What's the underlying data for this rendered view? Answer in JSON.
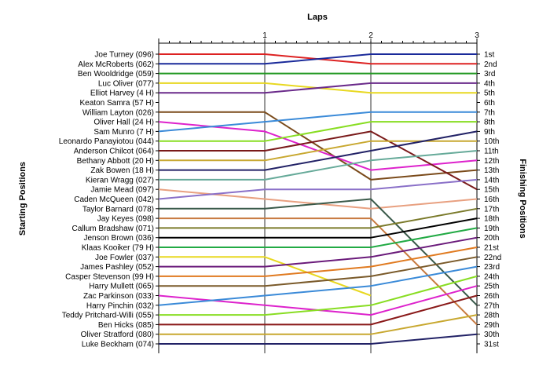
{
  "chart_data": {
    "type": "line",
    "xlabel": "Laps",
    "left_axis_label": "Starting Positions",
    "right_axis_label": "Finishing Positions",
    "x_ticks": [
      "1",
      "2",
      "3"
    ],
    "grid": "vertical",
    "position_labels": [
      "1st",
      "2nd",
      "3rd",
      "4th",
      "5th",
      "6th",
      "7th",
      "8th",
      "9th",
      "10th",
      "11th",
      "12th",
      "13th",
      "14th",
      "15th",
      "16th",
      "17th",
      "18th",
      "19th",
      "20th",
      "21st",
      "22nd",
      "23rd",
      "24th",
      "25th",
      "26th",
      "27th",
      "28th",
      "29th",
      "30th",
      "31st"
    ],
    "series": [
      {
        "name": "Joe Turney (096)",
        "color": "#dd2222",
        "positions": [
          1,
          1,
          2,
          2
        ]
      },
      {
        "name": "Alex McRoberts (062)",
        "color": "#1a2a9a",
        "positions": [
          2,
          2,
          1,
          1
        ]
      },
      {
        "name": "Ben Wooldridge (059)",
        "color": "#229922",
        "positions": [
          3,
          3,
          3,
          3
        ]
      },
      {
        "name": "Luc Oliver (077)",
        "color": "#e8d820",
        "positions": [
          4,
          4,
          5,
          5
        ]
      },
      {
        "name": "Elliot Harvey (4 H)",
        "color": "#6a2a8a",
        "positions": [
          5,
          5,
          4,
          4
        ]
      },
      {
        "name": "Keaton Samra (57 H)",
        "color": "",
        "positions": [
          6
        ]
      },
      {
        "name": "William Layton (026)",
        "color": "#7a4a1a",
        "positions": [
          7,
          7,
          14,
          13
        ]
      },
      {
        "name": "Oliver Hall (24 H)",
        "color": "#dd22cc",
        "positions": [
          8,
          9,
          13,
          12
        ]
      },
      {
        "name": "Sam Munro (7 H)",
        "color": "#3a8ad8",
        "positions": [
          9,
          8,
          7,
          7
        ]
      },
      {
        "name": "Leonardo Panayiotou (044)",
        "color": "#88dd22",
        "positions": [
          10,
          10,
          8,
          8
        ]
      },
      {
        "name": "Anderson Chilcot (064)",
        "color": "#7a1a1a",
        "positions": [
          11,
          11,
          9,
          15
        ]
      },
      {
        "name": "Bethany Abbott (20 H)",
        "color": "#c8a830",
        "positions": [
          12,
          12,
          10,
          10
        ]
      },
      {
        "name": "Zak Bowen (18 H)",
        "color": "#222266",
        "positions": [
          13,
          13,
          11,
          9
        ]
      },
      {
        "name": "Kieran Wragg (027)",
        "color": "#66aa99",
        "positions": [
          14,
          14,
          12,
          11
        ]
      },
      {
        "name": "Jamie Mead (097)",
        "color": "#e8a080",
        "positions": [
          15,
          16,
          17,
          16
        ]
      },
      {
        "name": "Caden McQueen (042)",
        "color": "#8a70c8",
        "positions": [
          16,
          15,
          15,
          14
        ]
      },
      {
        "name": "Taylor Barnard (078)",
        "color": "#3a5a4a",
        "positions": [
          17,
          17,
          16,
          27
        ]
      },
      {
        "name": "Jay Keyes (098)",
        "color": "#c87a40",
        "positions": [
          18,
          18,
          18,
          29
        ]
      },
      {
        "name": "Callum Bradshaw (071)",
        "color": "#7a7a2a",
        "positions": [
          19,
          19,
          19,
          17
        ]
      },
      {
        "name": "Jenson Brown (036)",
        "color": "#000000",
        "positions": [
          20,
          20,
          20,
          18
        ]
      },
      {
        "name": "Klaas Kooiker (79 H)",
        "color": "#22aa44",
        "positions": [
          21,
          21,
          21,
          19
        ]
      },
      {
        "name": "Joe Fowler (037)",
        "color": "#e8d820",
        "positions": [
          22,
          22,
          26
        ]
      },
      {
        "name": "James Pashley (052)",
        "color": "#6a1a7a",
        "positions": [
          23,
          23,
          22,
          20
        ]
      },
      {
        "name": "Casper Stevenson (99 H)",
        "color": "#e07a20",
        "positions": [
          24,
          24,
          23,
          21
        ]
      },
      {
        "name": "Harry Mullett (065)",
        "color": "#7a5a2a",
        "positions": [
          25,
          25,
          24,
          22
        ]
      },
      {
        "name": "Zac Parkinson (033)",
        "color": "#dd22cc",
        "positions": [
          26,
          27,
          28,
          25
        ]
      },
      {
        "name": "Harry Pinchin (032)",
        "color": "#3a8ad8",
        "positions": [
          27,
          26,
          25,
          23
        ]
      },
      {
        "name": "Teddy Pritchard-Willi (055)",
        "color": "#88dd22",
        "positions": [
          28,
          28,
          27,
          24
        ]
      },
      {
        "name": "Ben Hicks (085)",
        "color": "#8a1a1a",
        "positions": [
          29,
          29,
          29,
          26
        ]
      },
      {
        "name": "Oliver Stratford (080)",
        "color": "#c8a830",
        "positions": [
          30,
          30,
          30,
          28
        ]
      },
      {
        "name": "Luke Beckham (074)",
        "color": "#222266",
        "positions": [
          31,
          31,
          31,
          30
        ]
      }
    ]
  }
}
